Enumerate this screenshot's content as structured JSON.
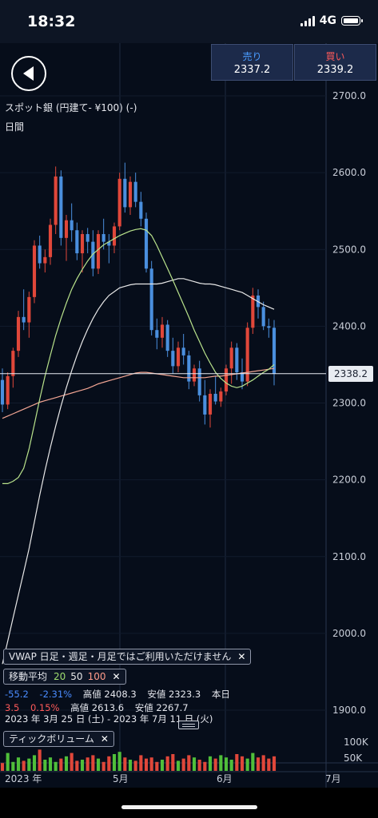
{
  "status": {
    "time": "18:32",
    "network": "4G"
  },
  "header": {
    "back_icon": "chevron-left-icon",
    "sell_label": "売り",
    "sell_price": "2337.2",
    "buy_label": "買い",
    "buy_price": "2339.2",
    "instrument": "スポット銀 (円建て- ¥100) (-)",
    "interval": "日間"
  },
  "current_price": "2338.2",
  "overlays": {
    "vwap": {
      "label": "VWAP  日足・週足・月足ではご利用いただけません"
    },
    "moving_average": {
      "label": "移動平均",
      "p20": "20",
      "p50": "50",
      "p100": "100"
    },
    "volume": {
      "label": "ティックボリューム"
    }
  },
  "stats": {
    "row1": {
      "change": "-55.2",
      "change_pct": "-2.31%",
      "high": "高値 2408.3",
      "low": "安値 2323.3",
      "tag": "本日"
    },
    "row2": {
      "change": "3.5",
      "change_pct": "0.15%",
      "high": "高値 2613.6",
      "low": "安値 2267.7"
    },
    "range": "2023 年 3月 25 日 (土) - 2023 年 7月 11 日 (火)"
  },
  "colors": {
    "up": "#e0473a",
    "down": "#4a8fde",
    "ma20": "#b9e38c",
    "ma50": "#e8e8e8",
    "ma100": "#f2a593",
    "volume_up": "#4fbf3a",
    "volume_down": "#e0473a"
  },
  "chart_data": {
    "type": "candlestick",
    "y_axis": {
      "ticks": [
        "2700.0",
        "2600.0",
        "2500.0",
        "2400.0",
        "2300.0",
        "2200.0",
        "2100.0",
        "2000.0",
        "1900.0"
      ],
      "ylim": [
        1885,
        2720
      ]
    },
    "x_axis": {
      "ticks": [
        "2023 年",
        "5月",
        "6月",
        "7月"
      ]
    },
    "volume_axis": {
      "ticks": [
        "100K",
        "50K"
      ]
    },
    "current_price_line": 2338.2,
    "candles": [
      {
        "o": 2330,
        "h": 2345,
        "l": 2288,
        "c": 2298
      },
      {
        "o": 2298,
        "h": 2340,
        "l": 2292,
        "c": 2335
      },
      {
        "o": 2335,
        "h": 2372,
        "l": 2320,
        "c": 2368
      },
      {
        "o": 2368,
        "h": 2420,
        "l": 2360,
        "c": 2412
      },
      {
        "o": 2412,
        "h": 2448,
        "l": 2395,
        "c": 2405
      },
      {
        "o": 2405,
        "h": 2445,
        "l": 2385,
        "c": 2438
      },
      {
        "o": 2438,
        "h": 2512,
        "l": 2430,
        "c": 2505
      },
      {
        "o": 2505,
        "h": 2518,
        "l": 2475,
        "c": 2482
      },
      {
        "o": 2482,
        "h": 2500,
        "l": 2470,
        "c": 2490
      },
      {
        "o": 2490,
        "h": 2540,
        "l": 2480,
        "c": 2532
      },
      {
        "o": 2532,
        "h": 2608,
        "l": 2520,
        "c": 2595
      },
      {
        "o": 2595,
        "h": 2603,
        "l": 2505,
        "c": 2515
      },
      {
        "o": 2515,
        "h": 2545,
        "l": 2485,
        "c": 2538
      },
      {
        "o": 2538,
        "h": 2560,
        "l": 2510,
        "c": 2525
      },
      {
        "o": 2525,
        "h": 2535,
        "l": 2486,
        "c": 2495
      },
      {
        "o": 2495,
        "h": 2525,
        "l": 2470,
        "c": 2520
      },
      {
        "o": 2520,
        "h": 2528,
        "l": 2495,
        "c": 2510
      },
      {
        "o": 2510,
        "h": 2525,
        "l": 2465,
        "c": 2475
      },
      {
        "o": 2475,
        "h": 2525,
        "l": 2468,
        "c": 2520
      },
      {
        "o": 2520,
        "h": 2540,
        "l": 2500,
        "c": 2510
      },
      {
        "o": 2510,
        "h": 2520,
        "l": 2482,
        "c": 2505
      },
      {
        "o": 2505,
        "h": 2535,
        "l": 2495,
        "c": 2530
      },
      {
        "o": 2530,
        "h": 2600,
        "l": 2525,
        "c": 2592
      },
      {
        "o": 2592,
        "h": 2613,
        "l": 2548,
        "c": 2555
      },
      {
        "o": 2555,
        "h": 2595,
        "l": 2545,
        "c": 2588
      },
      {
        "o": 2588,
        "h": 2600,
        "l": 2555,
        "c": 2562
      },
      {
        "o": 2562,
        "h": 2575,
        "l": 2530,
        "c": 2540
      },
      {
        "o": 2540,
        "h": 2548,
        "l": 2470,
        "c": 2475
      },
      {
        "o": 2475,
        "h": 2485,
        "l": 2388,
        "c": 2395
      },
      {
        "o": 2395,
        "h": 2410,
        "l": 2370,
        "c": 2385
      },
      {
        "o": 2385,
        "h": 2412,
        "l": 2372,
        "c": 2402
      },
      {
        "o": 2402,
        "h": 2408,
        "l": 2360,
        "c": 2368
      },
      {
        "o": 2368,
        "h": 2385,
        "l": 2338,
        "c": 2348
      },
      {
        "o": 2348,
        "h": 2380,
        "l": 2340,
        "c": 2372
      },
      {
        "o": 2372,
        "h": 2390,
        "l": 2350,
        "c": 2362
      },
      {
        "o": 2362,
        "h": 2368,
        "l": 2318,
        "c": 2328
      },
      {
        "o": 2328,
        "h": 2350,
        "l": 2322,
        "c": 2345
      },
      {
        "o": 2345,
        "h": 2355,
        "l": 2302,
        "c": 2310
      },
      {
        "o": 2310,
        "h": 2330,
        "l": 2272,
        "c": 2285
      },
      {
        "o": 2285,
        "h": 2318,
        "l": 2268,
        "c": 2312
      },
      {
        "o": 2312,
        "h": 2335,
        "l": 2298,
        "c": 2302
      },
      {
        "o": 2302,
        "h": 2320,
        "l": 2295,
        "c": 2315
      },
      {
        "o": 2315,
        "h": 2350,
        "l": 2310,
        "c": 2345
      },
      {
        "o": 2345,
        "h": 2380,
        "l": 2325,
        "c": 2372
      },
      {
        "o": 2372,
        "h": 2378,
        "l": 2330,
        "c": 2340
      },
      {
        "o": 2340,
        "h": 2358,
        "l": 2318,
        "c": 2328
      },
      {
        "o": 2328,
        "h": 2405,
        "l": 2322,
        "c": 2398
      },
      {
        "o": 2398,
        "h": 2450,
        "l": 2390,
        "c": 2440
      },
      {
        "o": 2440,
        "h": 2448,
        "l": 2410,
        "c": 2425
      },
      {
        "o": 2425,
        "h": 2432,
        "l": 2395,
        "c": 2400
      },
      {
        "o": 2400,
        "h": 2410,
        "l": 2385,
        "c": 2398
      },
      {
        "o": 2398,
        "h": 2408,
        "l": 2323,
        "c": 2338
      }
    ],
    "ma20": [
      2195,
      2195,
      2198,
      2203,
      2215,
      2240,
      2272,
      2305,
      2335,
      2362,
      2388,
      2410,
      2430,
      2448,
      2462,
      2474,
      2485,
      2494,
      2500,
      2506,
      2510,
      2514,
      2518,
      2521,
      2524,
      2526,
      2527,
      2525,
      2518,
      2505,
      2490,
      2475,
      2460,
      2444,
      2428,
      2412,
      2395,
      2380,
      2365,
      2352,
      2340,
      2332,
      2326,
      2322,
      2320,
      2322,
      2326,
      2330,
      2335,
      2340,
      2344,
      2350
    ],
    "ma50": [
      1960,
      1990,
      2020,
      2050,
      2080,
      2110,
      2145,
      2180,
      2212,
      2242,
      2270,
      2296,
      2320,
      2342,
      2362,
      2380,
      2396,
      2410,
      2422,
      2432,
      2440,
      2445,
      2450,
      2452,
      2454,
      2455,
      2455,
      2455,
      2455,
      2455,
      2456,
      2458,
      2460,
      2462,
      2462,
      2460,
      2458,
      2456,
      2455,
      2455,
      2454,
      2452,
      2450,
      2448,
      2446,
      2444,
      2440,
      2436,
      2432,
      2428,
      2425,
      2422
    ],
    "ma100": [
      2280,
      2283,
      2286,
      2289,
      2292,
      2295,
      2298,
      2301,
      2303,
      2305,
      2307,
      2309,
      2311,
      2313,
      2315,
      2317,
      2319,
      2322,
      2325,
      2327,
      2329,
      2331,
      2333,
      2335,
      2337,
      2339,
      2340,
      2340,
      2339,
      2338,
      2337,
      2336,
      2335,
      2334,
      2333,
      2333,
      2333,
      2333,
      2333,
      2334,
      2335,
      2335,
      2336,
      2337,
      2338,
      2339,
      2340,
      2341,
      2342,
      2343,
      2344,
      2345
    ],
    "volume": [
      35,
      80,
      40,
      60,
      45,
      55,
      70,
      95,
      50,
      60,
      40,
      55,
      65,
      80,
      45,
      50,
      60,
      70,
      55,
      40,
      65,
      75,
      85,
      60,
      50,
      45,
      70,
      55,
      60,
      40,
      50,
      65,
      75,
      45,
      55,
      70,
      60,
      50,
      40,
      65,
      55,
      70,
      60,
      50,
      75,
      65,
      55,
      80,
      60,
      70,
      55,
      65
    ]
  }
}
